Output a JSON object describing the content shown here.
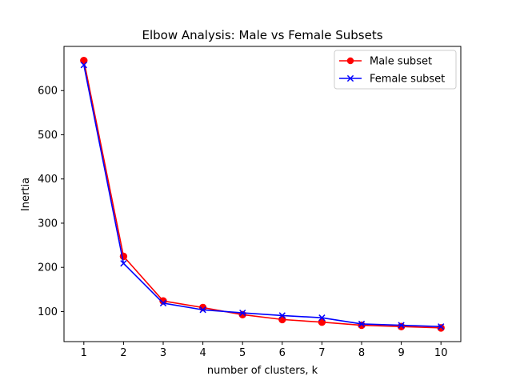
{
  "chart_data": {
    "type": "line",
    "title": "Elbow Analysis: Male vs Female Subsets",
    "xlabel": "number of clusters, k",
    "ylabel": "Inertia",
    "x": [
      1,
      2,
      3,
      4,
      5,
      6,
      7,
      8,
      9,
      10
    ],
    "xlim": [
      0.5,
      10.5
    ],
    "ylim": [
      32,
      700
    ],
    "yticks": [
      100,
      200,
      300,
      400,
      500,
      600
    ],
    "grid": false,
    "legend_position": "top-right",
    "series": [
      {
        "name": "Male subset",
        "color": "#ff0000",
        "marker": "circle",
        "values": [
          668,
          225,
          124,
          109,
          93,
          82,
          76,
          69,
          66,
          63
        ]
      },
      {
        "name": "Female subset",
        "color": "#0000ff",
        "marker": "x",
        "values": [
          658,
          209,
          119,
          104,
          97,
          91,
          86,
          72,
          69,
          66
        ]
      }
    ]
  }
}
